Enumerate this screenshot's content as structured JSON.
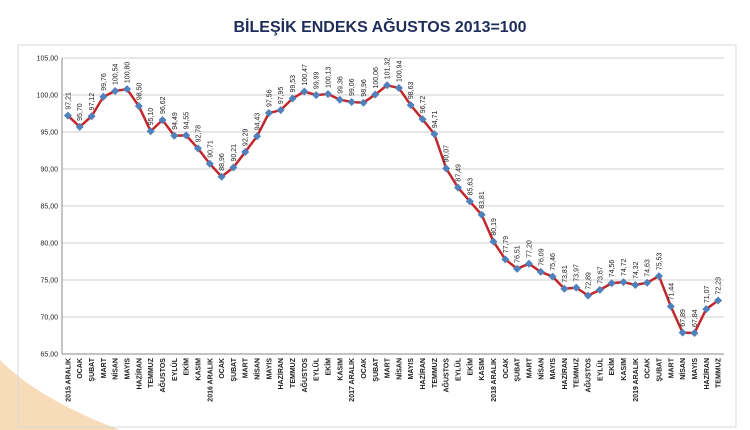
{
  "chart_data": {
    "type": "line",
    "title": "BİLEŞİK ENDEKS AĞUSTOS 2013=100",
    "categories": [
      "2015 ARALIK",
      "OCAK",
      "ŞUBAT",
      "MART",
      "NİSAN",
      "MAYIS",
      "HAZİRAN",
      "TEMMUZ",
      "AĞUSTOS",
      "EYLÜL",
      "EKİM",
      "KASIM",
      "2016 ARALIK",
      "OCAK",
      "ŞUBAT",
      "MART",
      "NİSAN",
      "MAYIS",
      "HAZİRAN",
      "TEMMUZ",
      "AĞUSTOS",
      "EYLÜL",
      "EKİM",
      "KASIM",
      "2017 ARALIK",
      "OCAK",
      "ŞUBAT",
      "MART",
      "NİSAN",
      "MAYIS",
      "HAZİRAN",
      "TEMMUZ",
      "AĞUSTOS",
      "EYLÜL",
      "EKİM",
      "KASIM",
      "2018 ARALIK",
      "OCAK",
      "ŞUBAT",
      "MART",
      "NİSAN",
      "MAYIS",
      "HAZİRAN",
      "TEMMUZ",
      "AĞUSTOS",
      "EYLÜL",
      "EKİM",
      "KASIM",
      "2019 ARALIK",
      "OCAK",
      "ŞUBAT",
      "MART",
      "NİSAN",
      "MAYIS",
      "HAZİRAN",
      "TEMMUZ"
    ],
    "values": [
      97.21,
      95.7,
      97.12,
      99.76,
      100.54,
      100.8,
      98.5,
      95.1,
      96.62,
      94.49,
      94.55,
      92.78,
      90.71,
      88.96,
      90.21,
      92.29,
      94.43,
      97.56,
      97.95,
      99.53,
      100.47,
      99.99,
      100.13,
      99.36,
      99.06,
      98.96,
      100.06,
      101.32,
      100.94,
      98.63,
      96.72,
      94.71,
      90.07,
      87.49,
      85.63,
      83.81,
      80.19,
      77.79,
      76.51,
      77.2,
      76.09,
      75.46,
      73.81,
      73.97,
      72.89,
      73.67,
      74.56,
      74.72,
      74.32,
      74.63,
      75.53,
      71.44,
      67.89,
      67.84,
      71.07,
      72.23
    ],
    "value_labels": [
      "97,21",
      "95,70",
      "97,12",
      "99,76",
      "100,54",
      "100,80",
      "98,50",
      "95,10",
      "96,62",
      "94,49",
      "94,55",
      "92,78",
      "90,71",
      "88,96",
      "90,21",
      "92,29",
      "94,43",
      "97,56",
      "97,95",
      "99,53",
      "100,47",
      "99,99",
      "100,13",
      "99,36",
      "99,06",
      "98,96",
      "100,06",
      "101,32",
      "100,94",
      "98,63",
      "96,72",
      "94,71",
      "90,07",
      "87,49",
      "85,63",
      "83,81",
      "80,19",
      "77,79",
      "76,51",
      "77,20",
      "76,09",
      "75,46",
      "73,81",
      "73,97",
      "72,89",
      "73,67",
      "74,56",
      "74,72",
      "74,32",
      "74,63",
      "75,53",
      "71,44",
      "67,89",
      "67,84",
      "71,07",
      "72,23"
    ],
    "line_color": "#c0282d",
    "marker_color": "#4f81bd",
    "ylim": [
      65,
      105
    ],
    "yticks": [
      {
        "value": 65,
        "label": "65,00"
      },
      {
        "value": 70,
        "label": "70,00"
      },
      {
        "value": 75,
        "label": "75,00"
      },
      {
        "value": 80,
        "label": "80,00"
      },
      {
        "value": 85,
        "label": "85,00"
      },
      {
        "value": 90,
        "label": "90,00"
      },
      {
        "value": 95,
        "label": "95,00"
      },
      {
        "value": 100,
        "label": "100,00"
      },
      {
        "value": 105,
        "label": "105,00"
      }
    ],
    "grid": true
  }
}
